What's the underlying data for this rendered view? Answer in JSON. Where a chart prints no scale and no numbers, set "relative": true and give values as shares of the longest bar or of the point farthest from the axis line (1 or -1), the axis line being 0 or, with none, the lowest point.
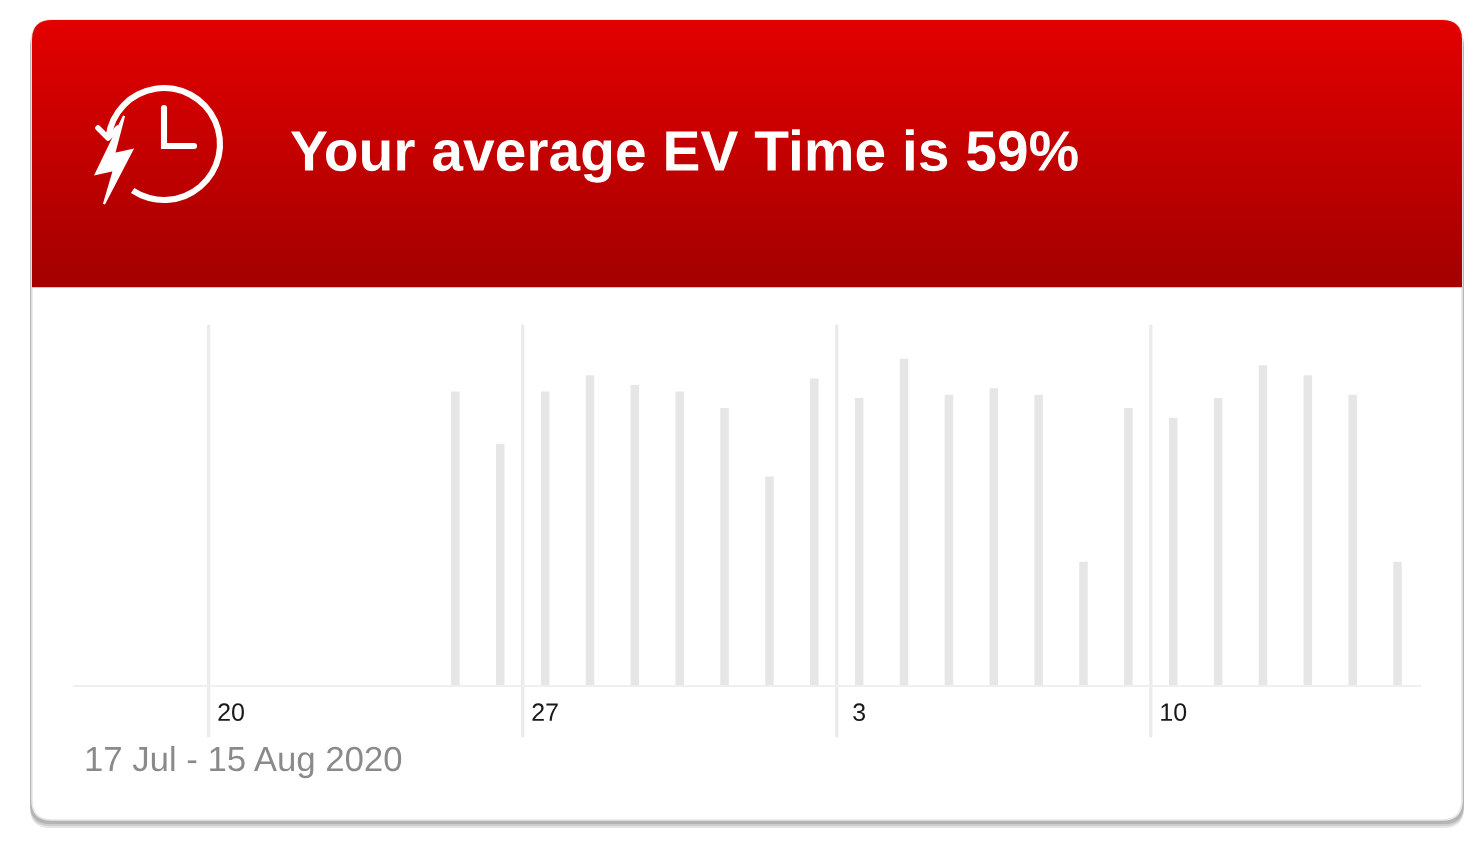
{
  "chart_data": {
    "type": "bar",
    "title": "Your average EV Time is 59%",
    "categories": [
      null,
      null,
      null,
      "20",
      null,
      null,
      null,
      null,
      null,
      null,
      "27",
      null,
      null,
      null,
      null,
      null,
      null,
      "3",
      null,
      null,
      null,
      null,
      null,
      null,
      "10",
      null,
      null,
      null,
      null,
      null
    ],
    "values": [
      null,
      null,
      null,
      null,
      null,
      null,
      null,
      null,
      0.9,
      0.74,
      0.9,
      0.95,
      0.92,
      0.9,
      0.85,
      0.64,
      0.94,
      0.88,
      1,
      0.89,
      0.91,
      0.89,
      0.38,
      0.85,
      0.82,
      0.88,
      0.98,
      0.95,
      0.89,
      0.38
    ],
    "color": "#e6e6e6",
    "relative": true,
    "grid": "x",
    "annotations": [
      "17 Jul - 15 Aug 2020"
    ]
  }
}
